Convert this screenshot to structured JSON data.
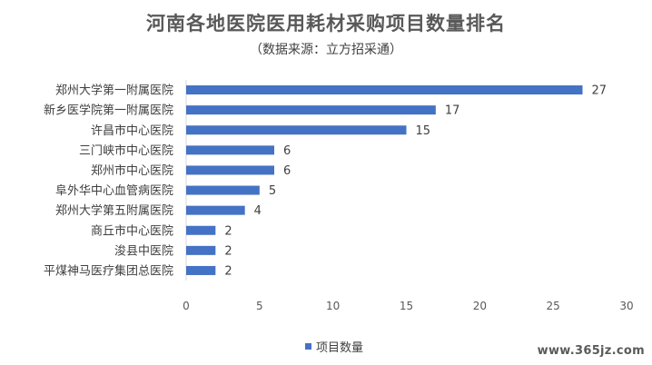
{
  "chart_data": {
    "type": "bar",
    "orientation": "horizontal",
    "title": "河南各地医院医用耗材采购项目数量排名",
    "subtitle": "（数据来源：立方招采通）",
    "categories": [
      "郑州大学第一附属医院",
      "新乡医学院第一附属医院",
      "许昌市中心医院",
      "三门峡市中心医院",
      "郑州市中心医院",
      "阜外华中心血管病医院",
      "郑州大学第五附属医院",
      "商丘市中心医院",
      "浚县中医院",
      "平煤神马医疗集团总医院"
    ],
    "series": [
      {
        "name": "项目数量",
        "values": [
          27,
          17,
          15,
          6,
          6,
          5,
          4,
          2,
          2,
          2
        ],
        "color": "#4472c4"
      }
    ],
    "xlim": [
      0,
      30
    ],
    "xticks": [
      0,
      5,
      10,
      15,
      20,
      25,
      30
    ],
    "grid": false,
    "legend_position": "bottom"
  },
  "watermark": "www.365jz.com"
}
